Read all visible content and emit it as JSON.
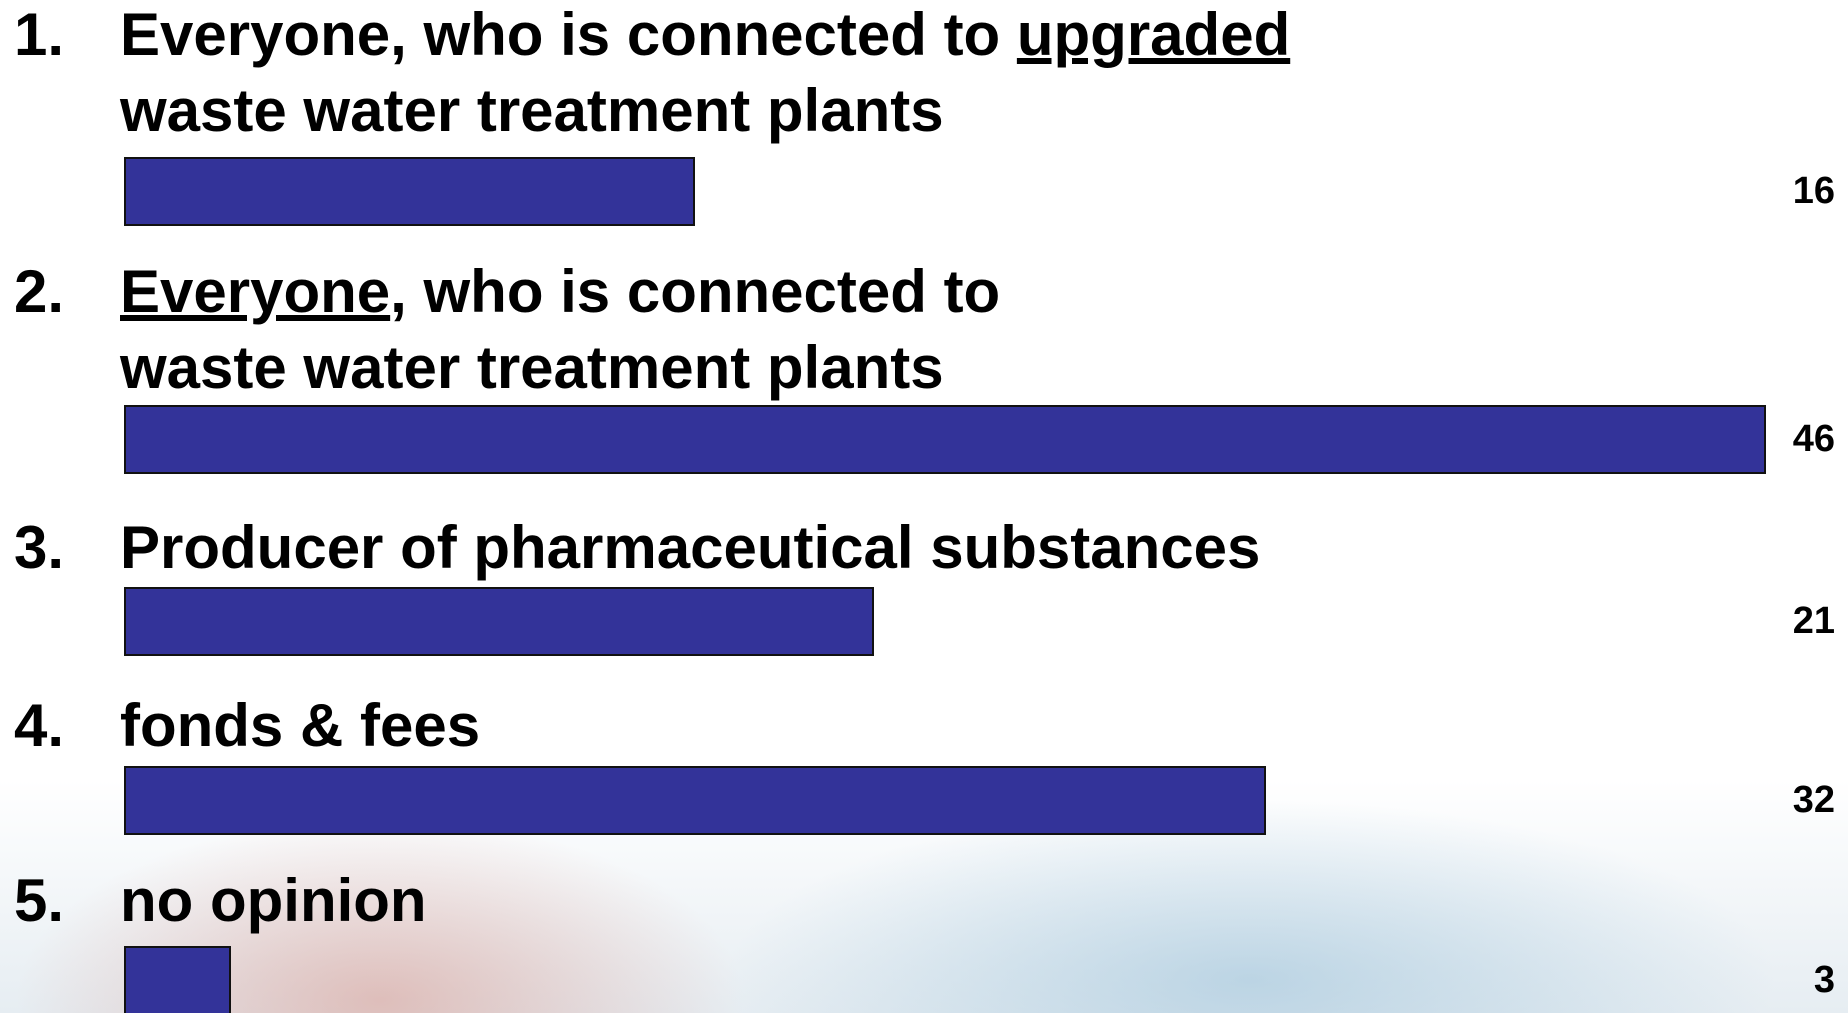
{
  "chart_data": {
    "type": "bar",
    "numbers": [
      "1.",
      "2.",
      "3.",
      "4.",
      "5."
    ],
    "categories": [
      "Everyone, who is connected to upgraded\nwaste water treatment plants",
      "Everyone, who is connected to\nwaste water treatment plants",
      "Producer of pharmaceutical substances",
      "fonds & fees",
      "no opinion"
    ],
    "underlined": [
      "upgraded",
      "Everyone",
      null,
      null,
      null
    ],
    "values": [
      16,
      46,
      21,
      32,
      3
    ],
    "color": "#333399"
  }
}
